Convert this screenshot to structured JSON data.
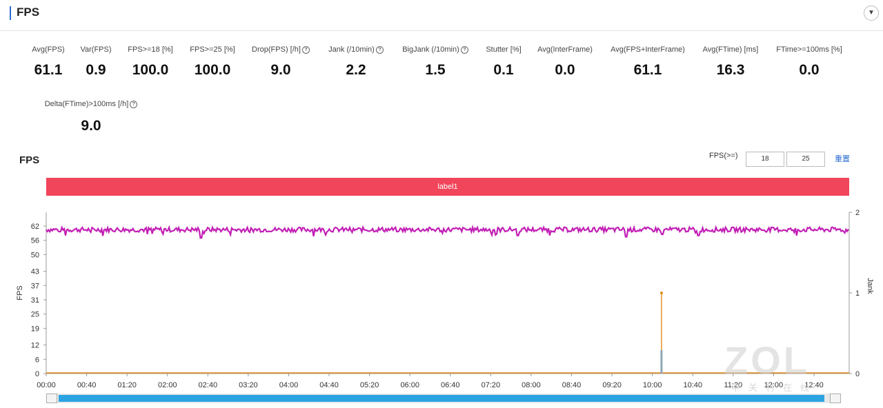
{
  "header": {
    "title": "FPS",
    "collapse_icon": "chevron-down-icon"
  },
  "metrics_row1": [
    {
      "label": "Avg(FPS)",
      "value": "61.1",
      "info": false
    },
    {
      "label": "Var(FPS)",
      "value": "0.9",
      "info": false
    },
    {
      "label": "FPS>=18 [%]",
      "value": "100.0",
      "info": false
    },
    {
      "label": "FPS>=25 [%]",
      "value": "100.0",
      "info": false
    },
    {
      "label": "Drop(FPS) [/h]",
      "value": "9.0",
      "info": true
    },
    {
      "label": "Jank (/10min)",
      "value": "2.2",
      "info": true
    },
    {
      "label": "BigJank (/10min)",
      "value": "1.5",
      "info": true
    },
    {
      "label": "Stutter [%]",
      "value": "0.1",
      "info": false
    },
    {
      "label": "Avg(InterFrame)",
      "value": "0.0",
      "info": false
    },
    {
      "label": "Avg(FPS+InterFrame)",
      "value": "61.1",
      "info": false
    },
    {
      "label": "Avg(FTime) [ms]",
      "value": "16.3",
      "info": false
    },
    {
      "label": "FTime>=100ms [%]",
      "value": "0.0",
      "info": false
    }
  ],
  "metrics_row2": [
    {
      "label": "Delta(FTime)>100ms [/h]",
      "value": "9.0",
      "info": true
    }
  ],
  "section": {
    "title": "FPS",
    "fps_range_label": "FPS(>=)",
    "threshold_low": "18",
    "threshold_high": "25",
    "reset_label": "重置"
  },
  "label_bar": "label1",
  "watermark": {
    "logo": "ZOL",
    "sub": "中关村在线"
  },
  "colors": {
    "fps_line": "#c21fb5",
    "jank_line": "#e58a1a",
    "label_bar": "#f0455a",
    "scroll_thumb": "#2ba3e3"
  },
  "chart_data": {
    "type": "line",
    "ylabel": "FPS",
    "y2label": "Jank",
    "yticks": [
      0,
      6,
      12,
      19,
      25,
      31,
      37,
      43,
      50,
      56,
      62
    ],
    "y2ticks": [
      0,
      1,
      2
    ],
    "ylim": [
      0,
      62
    ],
    "y2lim": [
      0,
      2
    ],
    "xticks": [
      "00:00",
      "00:40",
      "01:20",
      "02:00",
      "02:40",
      "03:20",
      "04:00",
      "04:40",
      "05:20",
      "06:00",
      "06:40",
      "07:20",
      "08:00",
      "08:40",
      "09:20",
      "10:00",
      "10:40",
      "11:20",
      "12:00",
      "12:40"
    ],
    "xlim_seconds": [
      0,
      800
    ],
    "series": [
      {
        "axis": "left",
        "color": "#c21fb5",
        "baseline": 60.5,
        "noise": 1.0,
        "dips": [
          [
            154,
            57
          ],
          [
            470,
            58
          ],
          [
            578,
            57.5
          ],
          [
            650,
            58
          ],
          [
            613,
            58.5
          ],
          [
            845,
            55
          ]
        ]
      },
      {
        "axis": "right",
        "color": "#e58a1a",
        "events": [
          [
            613,
            1.0
          ]
        ]
      }
    ],
    "grid": false,
    "legend": "none"
  }
}
